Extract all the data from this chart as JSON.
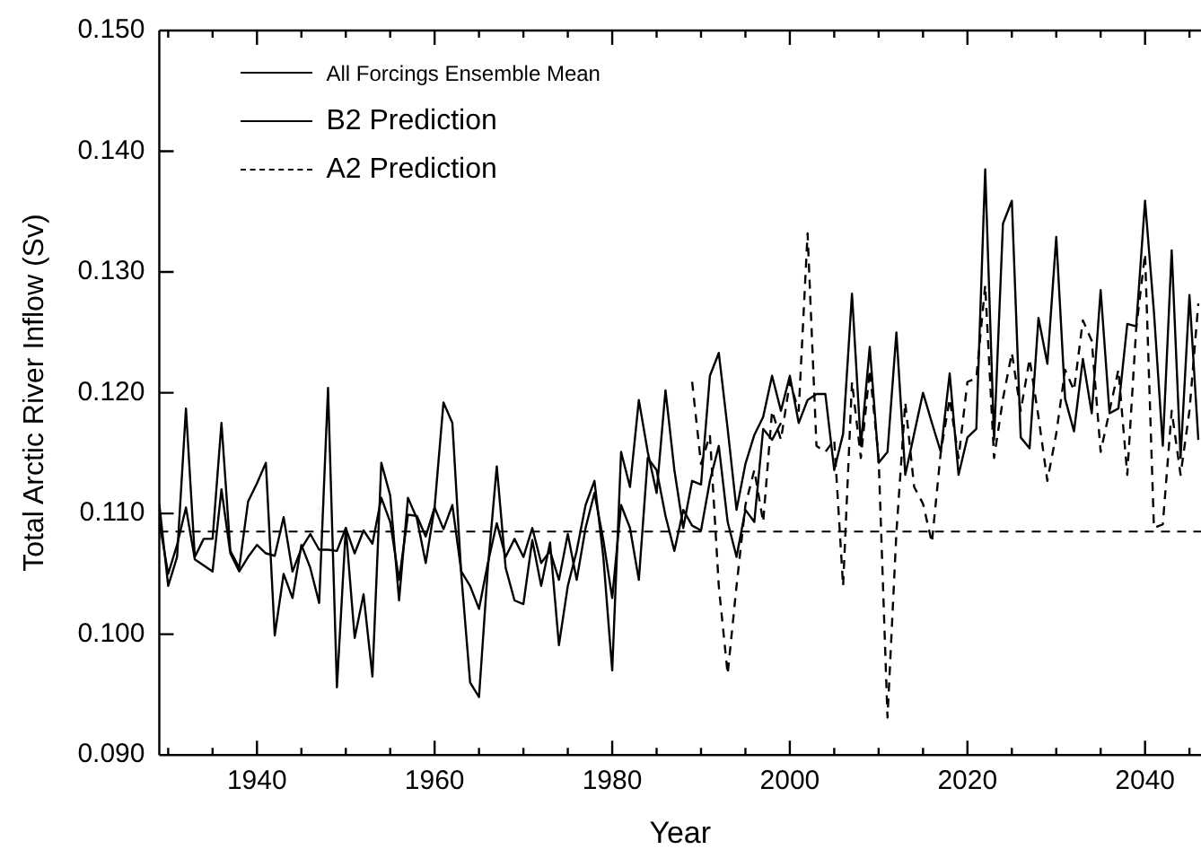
{
  "chart_data": {
    "type": "line",
    "xlabel": "Year",
    "ylabel": "Total Arctic River Inflow (Sv)",
    "xlim": [
      1929,
      2046.3
    ],
    "ylim": [
      0.09,
      0.15
    ],
    "xticks": [
      {
        "value": 1930,
        "label": null
      },
      {
        "value": 1935,
        "label": null
      },
      1940,
      {
        "value": 1945,
        "label": null
      },
      {
        "value": 1950,
        "label": null
      },
      {
        "value": 1955,
        "label": null
      },
      1960,
      {
        "value": 1965,
        "label": null
      },
      {
        "value": 1970,
        "label": null
      },
      {
        "value": 1975,
        "label": null
      },
      1980,
      {
        "value": 1985,
        "label": null
      },
      {
        "value": 1990,
        "label": null
      },
      {
        "value": 1995,
        "label": null
      },
      2000,
      {
        "value": 2005,
        "label": null
      },
      {
        "value": 2010,
        "label": null
      },
      {
        "value": 2015,
        "label": null
      },
      2020,
      {
        "value": 2025,
        "label": null
      },
      {
        "value": 2030,
        "label": null
      },
      {
        "value": 2035,
        "label": null
      },
      2040,
      {
        "value": 2045,
        "label": null
      }
    ],
    "yticks": [
      {
        "value": 0.09,
        "label": "0.090"
      },
      {
        "value": 0.1,
        "label": "0.100"
      },
      {
        "value": 0.11,
        "label": "0.110"
      },
      {
        "value": 0.12,
        "label": "0.120"
      },
      {
        "value": 0.13,
        "label": "0.130"
      },
      {
        "value": 0.14,
        "label": "0.140"
      },
      {
        "value": 0.15,
        "label": "0.150"
      }
    ],
    "legend": "top left",
    "marker": "none",
    "ref_lines": [
      {
        "axis": "y",
        "value": 0.1085,
        "line_style": "dashed",
        "color": "#000000"
      }
    ],
    "series": [
      {
        "name": "All Forcings Ensemble Mean",
        "color": "#000000",
        "line_style": "solid",
        "x": [
          1929,
          1930,
          1931,
          1932,
          1933,
          1934,
          1935,
          1936,
          1937,
          1938,
          1939,
          1940,
          1941,
          1942,
          1943,
          1944,
          1945,
          1946,
          1947,
          1948,
          1949,
          1950,
          1951,
          1952,
          1953,
          1954,
          1955,
          1956,
          1957,
          1958,
          1959,
          1960,
          1961,
          1962,
          1963,
          1964,
          1965,
          1966,
          1967,
          1968,
          1969,
          1970,
          1971,
          1972,
          1973,
          1974,
          1975,
          1976,
          1977,
          1978,
          1979,
          1980,
          1981,
          1982,
          1983,
          1984,
          1985,
          1986,
          1987,
          1988,
          1989,
          1990,
          1991,
          1992,
          1993,
          1994,
          1995,
          1996,
          1997,
          1998,
          1999
        ],
        "values": [
          0.1093,
          0.105,
          0.1074,
          0.1105,
          0.1062,
          0.1057,
          0.1052,
          0.112,
          0.1067,
          0.1052,
          0.1064,
          0.1074,
          0.1067,
          0.1065,
          0.1097,
          0.1052,
          0.1071,
          0.1083,
          0.107,
          0.107,
          0.1069,
          0.1088,
          0.1067,
          0.1086,
          0.1075,
          0.1113,
          0.1093,
          0.1045,
          0.1099,
          0.1098,
          0.1081,
          0.1105,
          0.1087,
          0.1107,
          0.1052,
          0.104,
          0.1021,
          0.1059,
          0.1092,
          0.1064,
          0.1079,
          0.1064,
          0.1088,
          0.1059,
          0.1069,
          0.1045,
          0.1083,
          0.1045,
          0.1088,
          0.1117,
          0.1078,
          0.103,
          0.1107,
          0.1088,
          0.1045,
          0.1146,
          0.1136,
          0.1098,
          0.1069,
          0.1103,
          0.109,
          0.1086,
          0.1127,
          0.1156,
          0.1093,
          0.1064,
          0.1103,
          0.1093,
          0.117,
          0.1161,
          0.1175
        ]
      },
      {
        "name": "B2 Prediction",
        "color": "#000000",
        "line_style": "solid",
        "x": [
          1929,
          1930,
          1931,
          1932,
          1933,
          1934,
          1935,
          1936,
          1937,
          1938,
          1939,
          1940,
          1941,
          1942,
          1943,
          1944,
          1945,
          1946,
          1947,
          1948,
          1949,
          1950,
          1951,
          1952,
          1953,
          1954,
          1955,
          1956,
          1957,
          1958,
          1959,
          1960,
          1961,
          1962,
          1963,
          1964,
          1965,
          1966,
          1967,
          1968,
          1969,
          1970,
          1971,
          1972,
          1973,
          1974,
          1975,
          1976,
          1977,
          1978,
          1979,
          1980,
          1981,
          1982,
          1983,
          1984,
          1985,
          1986,
          1987,
          1988,
          1989,
          1990,
          1991,
          1992,
          1993,
          1994,
          1995,
          1996,
          1997,
          1998,
          1999,
          2000,
          2001,
          2002,
          2003,
          2004,
          2005,
          2006,
          2007,
          2008,
          2009,
          2010,
          2011,
          2012,
          2013,
          2014,
          2015,
          2016,
          2017,
          2018,
          2019,
          2020,
          2021,
          2022,
          2023,
          2024,
          2025,
          2026,
          2027,
          2028,
          2029,
          2030,
          2031,
          2032,
          2033,
          2034,
          2035,
          2036,
          2037,
          2038,
          2039,
          2040,
          2041,
          2042,
          2043,
          2044,
          2045,
          2046
        ],
        "values": [
          0.1108,
          0.104,
          0.1064,
          0.1187,
          0.1064,
          0.1079,
          0.1079,
          0.1175,
          0.1069,
          0.1055,
          0.111,
          0.1125,
          0.1142,
          0.0999,
          0.105,
          0.103,
          0.1074,
          0.1055,
          0.1026,
          0.1204,
          0.0956,
          0.1088,
          0.0997,
          0.1033,
          0.0965,
          0.1142,
          0.1115,
          0.1028,
          0.1113,
          0.1096,
          0.1059,
          0.1105,
          0.1192,
          0.1175,
          0.105,
          0.096,
          0.0948,
          0.1055,
          0.1139,
          0.1055,
          0.1028,
          0.1025,
          0.1078,
          0.104,
          0.1076,
          0.0991,
          0.104,
          0.1069,
          0.1107,
          0.1127,
          0.1064,
          0.097,
          0.1151,
          0.1122,
          0.1194,
          0.1151,
          0.1117,
          0.1202,
          0.1136,
          0.1088,
          0.1127,
          0.1124,
          0.1214,
          0.1233,
          0.117,
          0.1103,
          0.1141,
          0.1165,
          0.118,
          0.1214,
          0.1185,
          0.1214,
          0.1175,
          0.1194,
          0.1199,
          0.1199,
          0.1136,
          0.1166,
          0.1282,
          0.1156,
          0.1238,
          0.1142,
          0.1151,
          0.125,
          0.1132,
          0.1166,
          0.12,
          0.1175,
          0.1151,
          0.1216,
          0.1132,
          0.1163,
          0.117,
          0.1385,
          0.1161,
          0.134,
          0.1359,
          0.1163,
          0.1154,
          0.1262,
          0.1224,
          0.1329,
          0.1195,
          0.1168,
          0.1228,
          0.1183,
          0.1285,
          0.1183,
          0.1187,
          0.1257,
          0.1255,
          0.1359,
          0.1267,
          0.1156,
          0.1318,
          0.1146,
          0.1281,
          0.1161
        ]
      },
      {
        "name": "A2 Prediction",
        "color": "#000000",
        "line_style": "dashed",
        "x": [
          1989,
          1990,
          1991,
          1992,
          1993,
          1994,
          1995,
          1996,
          1997,
          1998,
          1999,
          2000,
          2001,
          2002,
          2003,
          2004,
          2005,
          2006,
          2007,
          2008,
          2009,
          2010,
          2011,
          2012,
          2013,
          2014,
          2015,
          2016,
          2017,
          2018,
          2019,
          2020,
          2021,
          2022,
          2023,
          2024,
          2025,
          2026,
          2027,
          2028,
          2029,
          2030,
          2031,
          2032,
          2033,
          2034,
          2035,
          2036,
          2037,
          2038,
          2039,
          2040,
          2041,
          2042,
          2043,
          2044,
          2045,
          2046
        ],
        "values": [
          0.1209,
          0.1141,
          0.1165,
          0.104,
          0.0967,
          0.104,
          0.1107,
          0.1136,
          0.1093,
          0.1185,
          0.1161,
          0.1209,
          0.1185,
          0.1332,
          0.1156,
          0.1151,
          0.1161,
          0.104,
          0.1209,
          0.1146,
          0.1219,
          0.1146,
          0.0931,
          0.1084,
          0.1192,
          0.1122,
          0.1108,
          0.1076,
          0.1151,
          0.1195,
          0.1146,
          0.1209,
          0.1212,
          0.1289,
          0.1146,
          0.1195,
          0.1233,
          0.1185,
          0.1228,
          0.118,
          0.1127,
          0.1166,
          0.1219,
          0.1202,
          0.126,
          0.1243,
          0.1151,
          0.1185,
          0.1219,
          0.1132,
          0.1253,
          0.1315,
          0.1088,
          0.1091,
          0.1185,
          0.1132,
          0.1185,
          0.1274
        ]
      }
    ]
  }
}
